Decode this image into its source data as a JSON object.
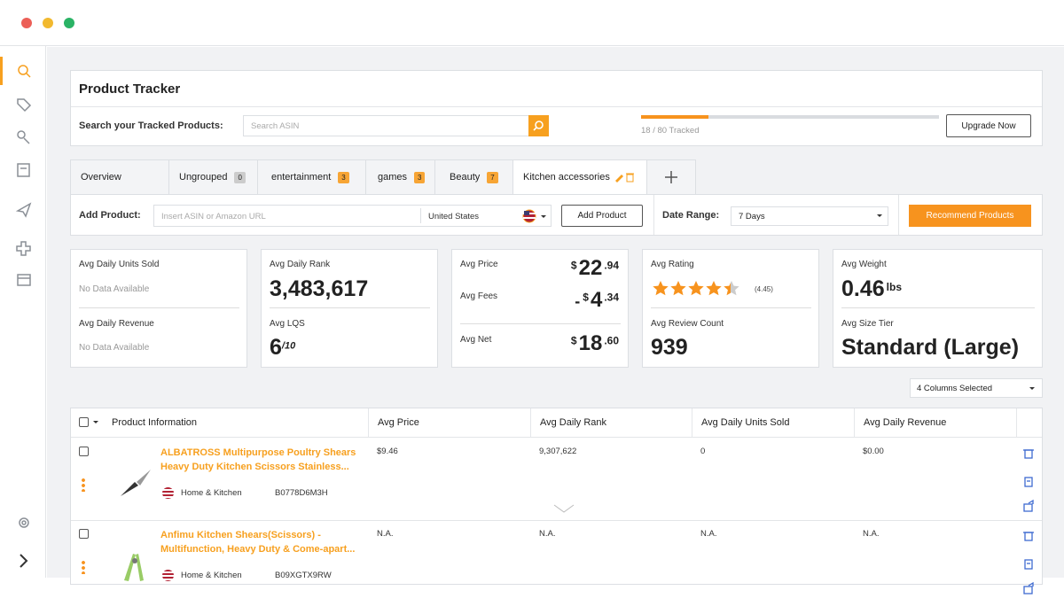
{
  "header": {
    "title": "Product Tracker"
  },
  "search": {
    "label": "Search your Tracked Products:",
    "placeholder": "Search ASIN"
  },
  "tracked": {
    "count": 18,
    "limit": 80,
    "label": "18 / 80 Tracked"
  },
  "upgrade_button": "Upgrade Now",
  "tabs": [
    {
      "label": "Overview"
    },
    {
      "label": "Ungrouped",
      "count": 0
    },
    {
      "label": "entertainment",
      "count": 3
    },
    {
      "label": "games",
      "count": 3
    },
    {
      "label": "Beauty",
      "count": 7
    },
    {
      "label": "Kitchen accessories"
    }
  ],
  "add_product": {
    "label": "Add Product:",
    "placeholder": "Insert ASIN or Amazon URL",
    "country": "United States",
    "button": "Add Product"
  },
  "date_range": {
    "label": "Date Range:",
    "value": "7 Days"
  },
  "recommend_button": "Recommend Products",
  "cards": [
    {
      "top": {
        "label": "Avg Daily Units Sold",
        "value": "No Data Available"
      },
      "bottom": {
        "label": "Avg Daily Revenue",
        "value": "No Data Available"
      }
    },
    {
      "top": {
        "label": "Avg Daily Rank",
        "value": "3,483,617"
      },
      "bottom": {
        "label": "Avg LQS",
        "value": "6",
        "suffix": "/10"
      }
    },
    {
      "rows": [
        {
          "label": "Avg Price",
          "currency": "$",
          "whole": "22",
          "cents": ".94"
        },
        {
          "label": "Avg Fees",
          "sign": "-",
          "currency": "$",
          "whole": "4",
          "cents": ".34"
        },
        {
          "label": "Avg Net",
          "currency": "$",
          "whole": "18",
          "cents": ".60"
        }
      ]
    },
    {
      "top": {
        "label": "Avg Rating",
        "rating": 4.45,
        "rating_label": "(4.45)",
        "max": 5
      },
      "bottom": {
        "label": "Avg Review Count",
        "value": "939"
      }
    },
    {
      "top": {
        "label": "Avg Weight",
        "value": "0.46",
        "unit": "lbs"
      },
      "bottom": {
        "label": "Avg Size Tier",
        "value": "Standard (Large)"
      }
    }
  ],
  "columns_selector": "4 Columns Selected",
  "table": {
    "columns": [
      "Product Information",
      "Avg Price",
      "Avg Daily Rank",
      "Avg Daily Units Sold",
      "Avg Daily Revenue"
    ],
    "rows": [
      {
        "title": "ALBATROSS Multipurpose Poultry Shears Heavy Duty Kitchen Scissors Stainless...",
        "category": "Home & Kitchen",
        "asin": "B0778D6M3H",
        "cells": [
          "$9.46",
          "9,307,622",
          "0",
          "$0.00"
        ]
      },
      {
        "title": "Anfimu Kitchen Shears(Scissors) - Multifunction, Heavy Duty & Come-apart...",
        "category": "Home & Kitchen",
        "asin": "B09XGTX9RW",
        "cells": [
          "N.A.",
          "N.A.",
          "N.A.",
          "N.A."
        ]
      }
    ]
  }
}
